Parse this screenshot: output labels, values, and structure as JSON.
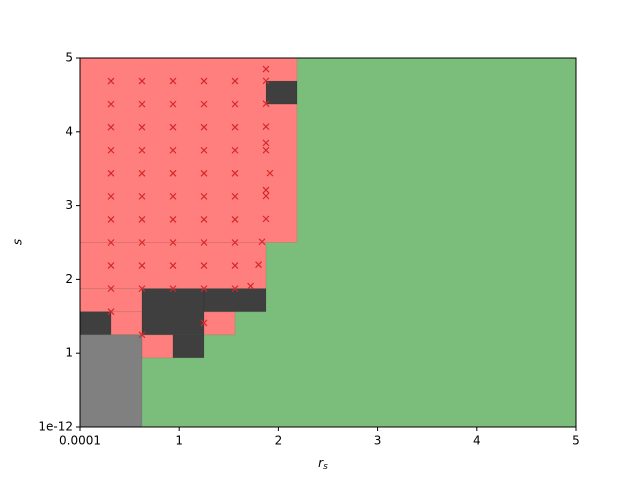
{
  "chart_data": {
    "type": "region",
    "xlabel": "r",
    "xlabel_sub": "s",
    "ylabel": "s",
    "xlim": [
      0.0001,
      5
    ],
    "ylim": [
      1e-12,
      5
    ],
    "xticks": [
      0.0001,
      1,
      2,
      3,
      4,
      5
    ],
    "yticks": [
      1e-12,
      1,
      2,
      3,
      4,
      5
    ],
    "regions": [
      {
        "color": "#7bbd7b",
        "rects": [
          [
            0.0001,
            5,
            1e-12,
            5
          ]
        ]
      },
      {
        "color": "#ff7f7f",
        "rects": [
          [
            0.0001,
            2.1875,
            2.5,
            5
          ],
          [
            0.0001,
            1.875,
            1.875,
            2.5
          ],
          [
            0.0001,
            0.625,
            1.5625,
            1.875
          ],
          [
            0.3125,
            0.625,
            1.25,
            1.5625
          ],
          [
            1.25,
            1.5625,
            1.25,
            1.5625
          ],
          [
            0.625,
            0.9375,
            0.9375,
            1.25
          ]
        ]
      },
      {
        "color": "#3f3f3f",
        "rects": [
          [
            1.875,
            2.1875,
            4.375,
            4.6875
          ],
          [
            0.625,
            1.25,
            1.25,
            1.875
          ],
          [
            1.25,
            1.875,
            1.5625,
            1.875
          ],
          [
            0.0001,
            0.3125,
            1.25,
            1.5625
          ],
          [
            0.9375,
            1.25,
            0.9375,
            1.25
          ]
        ]
      },
      {
        "color": "#808080",
        "rects": [
          [
            0.0001,
            0.625,
            1e-12,
            1.25
          ]
        ]
      }
    ],
    "markers": {
      "color": "#d62728",
      "x": [
        0.3125,
        0.3125,
        0.3125,
        0.3125,
        0.3125,
        0.3125,
        0.3125,
        0.3125,
        0.3125,
        0.3125,
        0.3125,
        0.625,
        0.625,
        0.625,
        0.625,
        0.625,
        0.625,
        0.625,
        0.625,
        0.625,
        0.625,
        0.625,
        0.9375,
        0.9375,
        0.9375,
        0.9375,
        0.9375,
        0.9375,
        0.9375,
        0.9375,
        0.9375,
        0.9375,
        1.25,
        1.25,
        1.25,
        1.25,
        1.25,
        1.25,
        1.25,
        1.25,
        1.25,
        1.25,
        1.25,
        1.5625,
        1.5625,
        1.5625,
        1.5625,
        1.5625,
        1.5625,
        1.5625,
        1.5625,
        1.5625,
        1.5625,
        1.875,
        1.875,
        1.875,
        1.875,
        1.875,
        1.875,
        1.915,
        1.875,
        1.875,
        1.875,
        1.835,
        1.8,
        1.72
      ],
      "y": [
        4.6875,
        4.375,
        4.0625,
        3.75,
        3.4375,
        3.125,
        2.8125,
        2.5,
        2.1875,
        1.875,
        1.5625,
        4.6875,
        4.375,
        4.0625,
        3.75,
        3.4375,
        3.125,
        2.8125,
        2.5,
        2.1875,
        1.875,
        1.25,
        4.6875,
        4.375,
        4.0625,
        3.75,
        3.4375,
        3.125,
        2.8125,
        2.5,
        2.1875,
        1.875,
        4.6875,
        4.375,
        4.0625,
        3.75,
        3.4375,
        3.125,
        2.8125,
        2.5,
        2.1875,
        1.875,
        1.41,
        4.6875,
        4.375,
        4.0625,
        3.75,
        3.4375,
        3.125,
        2.8125,
        2.5,
        2.1875,
        1.875,
        4.85,
        4.69,
        4.38,
        4.07,
        3.85,
        3.75,
        3.44,
        3.21,
        3.13,
        2.82,
        2.51,
        2.2,
        1.91
      ]
    }
  }
}
